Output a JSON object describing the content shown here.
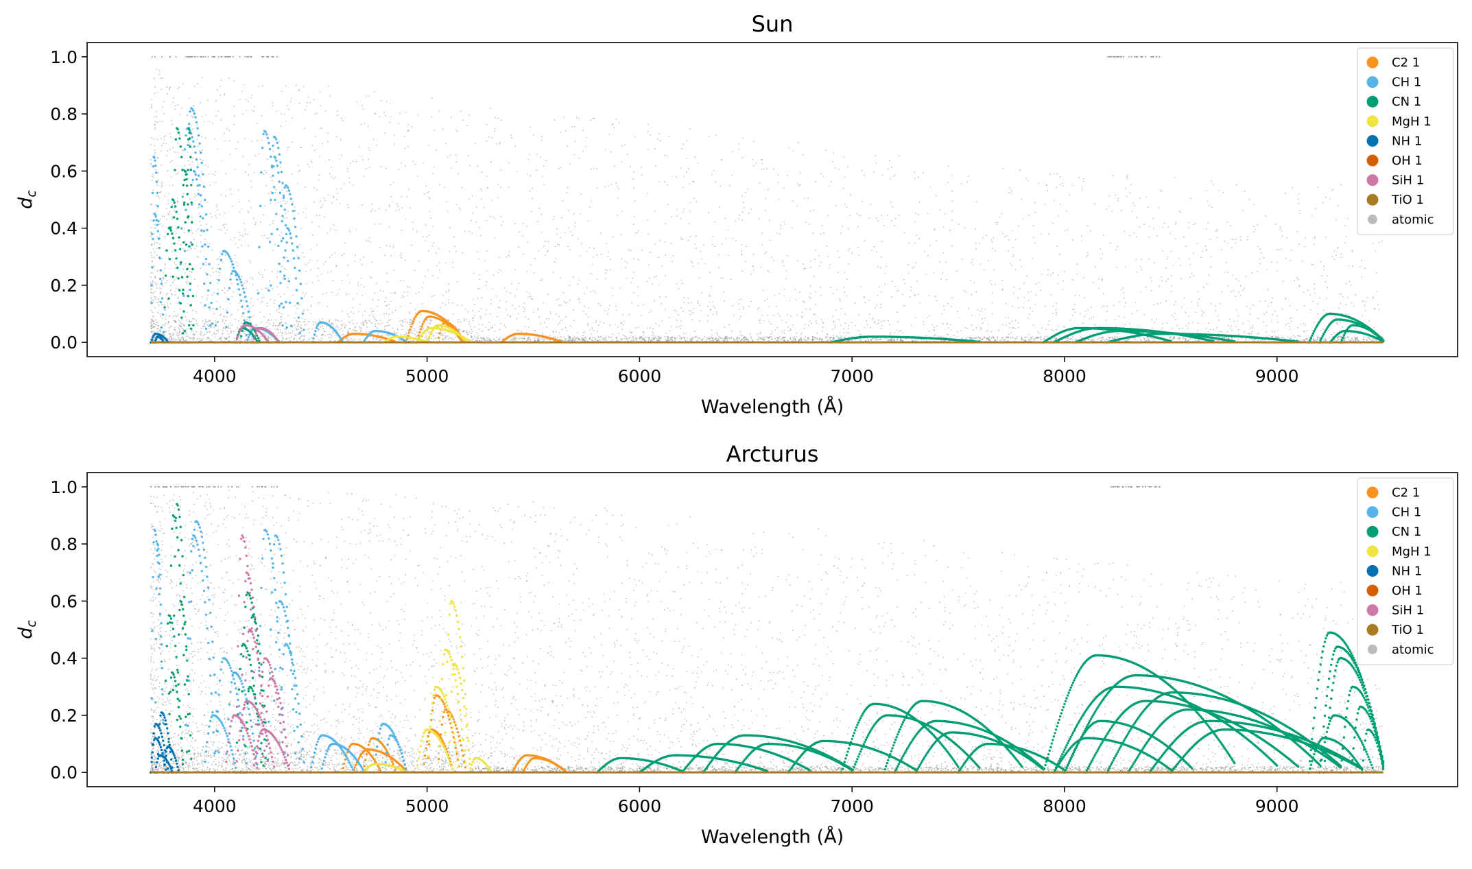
{
  "figure": {
    "xlabel": "Wavelength (Å)",
    "ylabel": "d_c",
    "ylabel_main": "d",
    "ylabel_sub": "c"
  },
  "legend": {
    "labels": [
      "C2 1",
      "CH 1",
      "CN 1",
      "MgH 1",
      "NH 1",
      "OH 1",
      "SiH 1",
      "TiO 1",
      "atomic"
    ],
    "colors": [
      "#f7931e",
      "#56b4e9",
      "#009e73",
      "#f0e442",
      "#0072b2",
      "#d55e00",
      "#cc79a7",
      "#a87a22",
      "#bbbbbb"
    ],
    "placement": "upper right"
  },
  "chart_data": [
    {
      "type": "scatter",
      "title": "Sun",
      "xlabel": "Wavelength (Å)",
      "ylabel": "d_c",
      "xlim": [
        3400,
        9850
      ],
      "ylim": [
        -0.05,
        1.05
      ],
      "xticks": [
        4000,
        5000,
        6000,
        7000,
        8000,
        9000
      ],
      "yticks": [
        0.0,
        0.2,
        0.4,
        0.6,
        0.8,
        1.0
      ],
      "ytick_labels": [
        "0.0",
        "0.2",
        "0.4",
        "0.6",
        "0.8",
        "1.0"
      ],
      "grid": false,
      "legend": "upper right",
      "atomic_envelope": [
        [
          3700,
          0.96
        ],
        [
          4000,
          0.93
        ],
        [
          4500,
          0.9
        ],
        [
          5000,
          0.86
        ],
        [
          5500,
          0.8
        ],
        [
          6000,
          0.78
        ],
        [
          6500,
          0.72
        ],
        [
          7000,
          0.68
        ],
        [
          7500,
          0.62
        ],
        [
          8000,
          0.6
        ],
        [
          8500,
          0.58
        ],
        [
          9000,
          0.56
        ],
        [
          9500,
          0.55
        ]
      ],
      "series": [
        {
          "name": "C2 1",
          "color": "#f7931e",
          "arcs": [
            [
              4580,
              4850,
              0.03
            ],
            [
              4900,
              5170,
              0.11
            ],
            [
              4950,
              5160,
              0.09
            ],
            [
              5050,
              5170,
              0.07
            ],
            [
              5350,
              5630,
              0.03
            ]
          ]
        },
        {
          "name": "CH 1",
          "color": "#56b4e9",
          "arcs": [
            [
              3700,
              3750,
              0.65
            ],
            [
              3700,
              3760,
              0.45
            ],
            [
              3850,
              3990,
              0.82
            ],
            [
              3830,
              3980,
              0.75
            ],
            [
              3880,
              3960,
              0.6
            ],
            [
              4000,
              4150,
              0.32
            ],
            [
              4050,
              4180,
              0.25
            ],
            [
              4200,
              4320,
              0.74
            ],
            [
              4250,
              4360,
              0.72
            ],
            [
              4260,
              4340,
              0.65
            ],
            [
              4300,
              4420,
              0.55
            ],
            [
              4320,
              4400,
              0.4
            ],
            [
              4460,
              4600,
              0.07
            ],
            [
              4700,
              4900,
              0.04
            ],
            [
              4150,
              4300,
              0.05
            ]
          ]
        },
        {
          "name": "CN 1",
          "color": "#009e73",
          "arcs": [
            [
              3800,
              3880,
              0.75
            ],
            [
              3780,
              3860,
              0.5
            ],
            [
              3760,
              3850,
              0.4
            ],
            [
              3870,
              3900,
              0.75
            ],
            [
              3850,
              3890,
              0.6
            ],
            [
              4120,
              4210,
              0.07
            ],
            [
              4100,
              4200,
              0.05
            ],
            [
              6900,
              7600,
              0.02
            ],
            [
              7900,
              8500,
              0.05
            ],
            [
              7950,
              8700,
              0.05
            ],
            [
              8050,
              8800,
              0.04
            ],
            [
              8200,
              9100,
              0.03
            ],
            [
              9150,
              9500,
              0.1
            ],
            [
              9200,
              9500,
              0.08
            ],
            [
              9300,
              9500,
              0.06
            ],
            [
              9250,
              9500,
              0.04
            ]
          ]
        },
        {
          "name": "MgH 1",
          "color": "#f0e442",
          "arcs": [
            [
              4950,
              5200,
              0.05
            ],
            [
              5000,
              5180,
              0.06
            ],
            [
              4800,
              5000,
              0.02
            ]
          ]
        },
        {
          "name": "NH 1",
          "color": "#0072b2",
          "arcs": [
            [
              3700,
              3780,
              0.03
            ],
            [
              3720,
              3760,
              0.02
            ]
          ]
        },
        {
          "name": "OH 1",
          "color": "#d55e00",
          "arcs": []
        },
        {
          "name": "SiH 1",
          "color": "#cc79a7",
          "arcs": [
            [
              4100,
              4250,
              0.06
            ],
            [
              4180,
              4300,
              0.05
            ]
          ]
        },
        {
          "name": "TiO 1",
          "color": "#a87a22",
          "arcs": []
        }
      ]
    },
    {
      "type": "scatter",
      "title": "Arcturus",
      "xlabel": "Wavelength (Å)",
      "ylabel": "d_c",
      "xlim": [
        3400,
        9850
      ],
      "ylim": [
        -0.05,
        1.05
      ],
      "xticks": [
        4000,
        5000,
        6000,
        7000,
        8000,
        9000
      ],
      "yticks": [
        0.0,
        0.2,
        0.4,
        0.6,
        0.8,
        1.0
      ],
      "ytick_labels": [
        "0.0",
        "0.2",
        "0.4",
        "0.6",
        "0.8",
        "1.0"
      ],
      "grid": false,
      "legend": "upper right",
      "atomic_envelope": [
        [
          3700,
          1.0
        ],
        [
          4000,
          0.99
        ],
        [
          4500,
          0.98
        ],
        [
          5000,
          0.97
        ],
        [
          5500,
          0.95
        ],
        [
          6000,
          0.92
        ],
        [
          6500,
          0.88
        ],
        [
          7000,
          0.84
        ],
        [
          7500,
          0.8
        ],
        [
          8000,
          0.76
        ],
        [
          8500,
          0.72
        ],
        [
          9000,
          0.68
        ],
        [
          9500,
          0.66
        ]
      ],
      "series": [
        {
          "name": "C2 1",
          "color": "#f7931e",
          "arcs": [
            [
              4600,
              4780,
              0.1
            ],
            [
              4700,
              4850,
              0.12
            ],
            [
              4650,
              4900,
              0.08
            ],
            [
              5000,
              5150,
              0.27
            ],
            [
              5050,
              5180,
              0.22
            ],
            [
              4980,
              5120,
              0.15
            ],
            [
              5400,
              5650,
              0.06
            ],
            [
              5450,
              5650,
              0.05
            ]
          ]
        },
        {
          "name": "CH 1",
          "color": "#56b4e9",
          "arcs": [
            [
              3700,
              3760,
              0.85
            ],
            [
              3720,
              3760,
              0.8
            ],
            [
              3870,
              4020,
              0.88
            ],
            [
              3860,
              4000,
              0.83
            ],
            [
              4200,
              4330,
              0.85
            ],
            [
              4250,
              4380,
              0.83
            ],
            [
              4270,
              4400,
              0.6
            ],
            [
              4300,
              4420,
              0.45
            ],
            [
              4450,
              4650,
              0.13
            ],
            [
              4500,
              4700,
              0.1
            ],
            [
              4750,
              4900,
              0.17
            ],
            [
              4800,
              4900,
              0.13
            ],
            [
              4000,
              4150,
              0.4
            ],
            [
              4050,
              4200,
              0.35
            ],
            [
              3950,
              4100,
              0.2
            ]
          ]
        },
        {
          "name": "CN 1",
          "color": "#009e73",
          "arcs": [
            [
              3800,
              3880,
              0.94
            ],
            [
              3780,
              3870,
              0.9
            ],
            [
              3820,
              3890,
              0.6
            ],
            [
              3760,
              3850,
              0.55
            ],
            [
              3780,
              3850,
              0.35
            ],
            [
              4120,
              4240,
              0.63
            ],
            [
              4150,
              4250,
              0.55
            ],
            [
              4100,
              4220,
              0.45
            ],
            [
              4140,
              4230,
              0.3
            ],
            [
              5800,
              6200,
              0.05
            ],
            [
              6000,
              6600,
              0.06
            ],
            [
              6200,
              6800,
              0.1
            ],
            [
              6300,
              7000,
              0.13
            ],
            [
              6450,
              7000,
              0.1
            ],
            [
              6700,
              7300,
              0.11
            ],
            [
              6950,
              7500,
              0.24
            ],
            [
              7000,
              7600,
              0.2
            ],
            [
              7150,
              7800,
              0.25
            ],
            [
              7200,
              7900,
              0.18
            ],
            [
              7300,
              7900,
              0.14
            ],
            [
              7500,
              8000,
              0.1
            ],
            [
              7900,
              8800,
              0.41
            ],
            [
              7950,
              9000,
              0.3
            ],
            [
              8000,
              9200,
              0.34
            ],
            [
              8100,
              9100,
              0.25
            ],
            [
              8200,
              9300,
              0.28
            ],
            [
              8300,
              9300,
              0.22
            ],
            [
              8400,
              9400,
              0.18
            ],
            [
              8500,
              9400,
              0.15
            ],
            [
              8000,
              8600,
              0.18
            ],
            [
              7950,
              8500,
              0.12
            ],
            [
              9150,
              9500,
              0.49
            ],
            [
              9200,
              9500,
              0.44
            ],
            [
              9220,
              9500,
              0.4
            ],
            [
              9300,
              9500,
              0.3
            ],
            [
              9350,
              9500,
              0.23
            ],
            [
              9200,
              9450,
              0.2
            ],
            [
              9400,
              9500,
              0.15
            ],
            [
              9150,
              9400,
              0.12
            ]
          ]
        },
        {
          "name": "MgH 1",
          "color": "#f0e442",
          "arcs": [
            [
              5080,
              5200,
              0.6
            ],
            [
              5050,
              5180,
              0.43
            ],
            [
              5100,
              5200,
              0.38
            ],
            [
              5000,
              5150,
              0.3
            ],
            [
              4950,
              5120,
              0.15
            ],
            [
              4700,
              4900,
              0.03
            ],
            [
              5200,
              5300,
              0.05
            ]
          ]
        },
        {
          "name": "NH 1",
          "color": "#0072b2",
          "arcs": [
            [
              3700,
              3780,
              0.17
            ],
            [
              3730,
              3800,
              0.21
            ],
            [
              3700,
              3770,
              0.12
            ],
            [
              3760,
              3830,
              0.09
            ],
            [
              3720,
              3800,
              0.06
            ]
          ]
        },
        {
          "name": "OH 1",
          "color": "#d55e00",
          "arcs": []
        },
        {
          "name": "SiH 1",
          "color": "#cc79a7",
          "arcs": [
            [
              4100,
              4200,
              0.83
            ],
            [
              4120,
              4230,
              0.7
            ],
            [
              4130,
              4250,
              0.5
            ],
            [
              4200,
              4330,
              0.4
            ],
            [
              4230,
              4350,
              0.33
            ],
            [
              4100,
              4280,
              0.25
            ],
            [
              4050,
              4200,
              0.2
            ],
            [
              4180,
              4350,
              0.15
            ]
          ]
        },
        {
          "name": "TiO 1",
          "color": "#a87a22",
          "arcs": []
        }
      ]
    }
  ]
}
